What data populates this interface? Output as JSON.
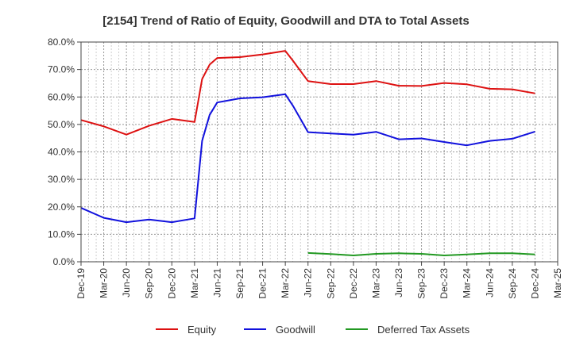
{
  "chart_data": {
    "type": "line",
    "title": "[2154]  Trend of Ratio of Equity, Goodwill and DTA to Total Assets",
    "xlabel": "",
    "ylabel": "",
    "ylim": [
      0,
      80
    ],
    "y_ticks": [
      0,
      10,
      20,
      30,
      40,
      50,
      60,
      70,
      80
    ],
    "y_tick_labels": [
      "0.0%",
      "10.0%",
      "20.0%",
      "30.0%",
      "40.0%",
      "50.0%",
      "60.0%",
      "70.0%",
      "80.0%"
    ],
    "x_tick_labels": [
      "Dec-19",
      "Mar-20",
      "Jun-20",
      "Sep-20",
      "Dec-20",
      "Mar-21",
      "Jun-21",
      "Sep-21",
      "Dec-21",
      "Mar-22",
      "Jun-22",
      "Sep-22",
      "Dec-22",
      "Mar-23",
      "Jun-23",
      "Sep-23",
      "Dec-23",
      "Mar-24",
      "Jun-24",
      "Sep-24",
      "Dec-24",
      "Mar-25"
    ],
    "grid": true,
    "legend_position": "bottom",
    "series": [
      {
        "name": "Equity",
        "color": "#dd1111",
        "points": [
          [
            "Dec-19",
            51.6
          ],
          [
            "Mar-20",
            49.3
          ],
          [
            "Jun-20",
            46.3
          ],
          [
            "Sep-20",
            49.5
          ],
          [
            "Dec-20",
            52.0
          ],
          [
            "Mar-21",
            50.9
          ],
          [
            "Apr-21",
            66.5
          ],
          [
            "May-21",
            71.8
          ],
          [
            "Jun-21",
            74.2
          ],
          [
            "Sep-21",
            74.5
          ],
          [
            "Dec-21",
            75.5
          ],
          [
            "Mar-22",
            76.8
          ],
          [
            "Apr-22",
            73.2
          ],
          [
            "May-22",
            69.5
          ],
          [
            "Jun-22",
            65.8
          ],
          [
            "Sep-22",
            64.7
          ],
          [
            "Dec-22",
            64.7
          ],
          [
            "Mar-23",
            65.8
          ],
          [
            "Jun-23",
            64.1
          ],
          [
            "Sep-23",
            64.0
          ],
          [
            "Dec-23",
            65.1
          ],
          [
            "Mar-24",
            64.6
          ],
          [
            "Jun-24",
            63.0
          ],
          [
            "Sep-24",
            62.8
          ],
          [
            "Dec-24",
            61.3
          ]
        ]
      },
      {
        "name": "Goodwill",
        "color": "#1111dd",
        "points": [
          [
            "Dec-19",
            19.6
          ],
          [
            "Mar-20",
            16.0
          ],
          [
            "Jun-20",
            14.4
          ],
          [
            "Sep-20",
            15.4
          ],
          [
            "Dec-20",
            14.4
          ],
          [
            "Mar-21",
            15.8
          ],
          [
            "Apr-21",
            44.0
          ],
          [
            "May-21",
            53.5
          ],
          [
            "Jun-21",
            58.0
          ],
          [
            "Sep-21",
            59.5
          ],
          [
            "Dec-21",
            59.9
          ],
          [
            "Mar-22",
            61.0
          ],
          [
            "Apr-22",
            56.8
          ],
          [
            "May-22",
            52.0
          ],
          [
            "Jun-22",
            47.2
          ],
          [
            "Sep-22",
            46.7
          ],
          [
            "Dec-22",
            46.3
          ],
          [
            "Mar-23",
            47.3
          ],
          [
            "Jun-23",
            44.6
          ],
          [
            "Sep-23",
            44.9
          ],
          [
            "Dec-23",
            43.6
          ],
          [
            "Mar-24",
            42.4
          ],
          [
            "Jun-24",
            44.0
          ],
          [
            "Sep-24",
            44.8
          ],
          [
            "Dec-24",
            47.4
          ]
        ]
      },
      {
        "name": "Deferred Tax Assets",
        "color": "#229922",
        "points": [
          [
            "Jun-22",
            3.2
          ],
          [
            "Sep-22",
            2.8
          ],
          [
            "Dec-22",
            2.3
          ],
          [
            "Mar-23",
            2.9
          ],
          [
            "Jun-23",
            3.1
          ],
          [
            "Sep-23",
            2.9
          ],
          [
            "Dec-23",
            2.3
          ],
          [
            "Mar-24",
            2.7
          ],
          [
            "Jun-24",
            3.1
          ],
          [
            "Sep-24",
            3.1
          ],
          [
            "Dec-24",
            2.7
          ]
        ]
      }
    ]
  }
}
